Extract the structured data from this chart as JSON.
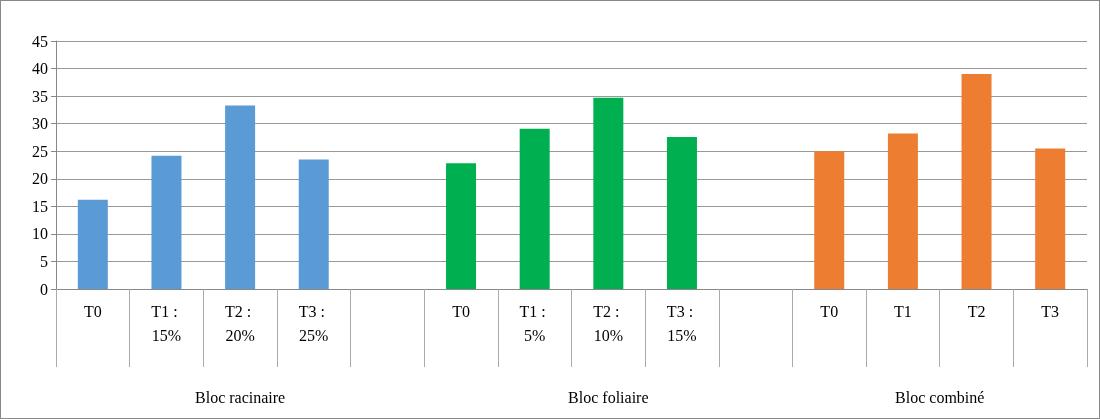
{
  "chart_data": {
    "type": "bar",
    "categories": [
      "T0",
      "T1 : 15%",
      "T2 : 20%",
      "T3 : 25%",
      null,
      "T0",
      "T1 : 5%",
      "T2 : 10%",
      "T3 : 15%",
      null,
      "T0",
      "T1",
      "T2",
      "T3"
    ],
    "values": [
      16.2,
      24.2,
      33.3,
      23.5,
      null,
      22.8,
      29.1,
      34.7,
      27.6,
      null,
      25,
      28.2,
      39,
      25.5
    ],
    "colors": [
      "#5b9bd5",
      "#5b9bd5",
      "#5b9bd5",
      "#5b9bd5",
      "#5b9bd5",
      "#00b050",
      "#00b050",
      "#00b050",
      "#00b050",
      "#00b050",
      "#ed7d31",
      "#ed7d31",
      "#ed7d31",
      "#ed7d31"
    ],
    "annotations": [
      "Bloc racinaire",
      "Bloc foliaire",
      "Bloc combiné"
    ],
    "ylim": [
      0,
      45
    ],
    "yticks": [
      0,
      5,
      10,
      15,
      20,
      25,
      30,
      35,
      40,
      45
    ],
    "grid": "y"
  }
}
